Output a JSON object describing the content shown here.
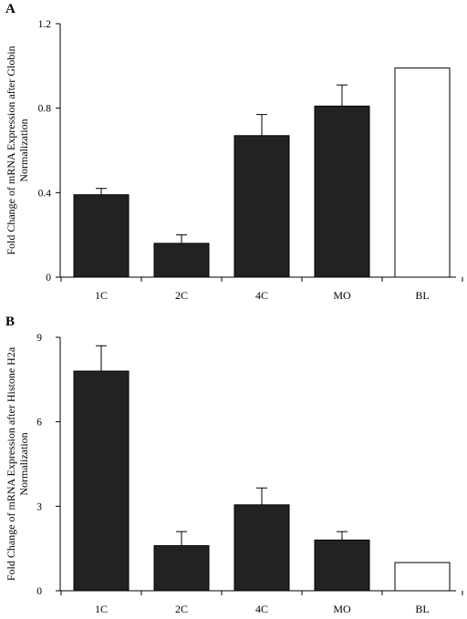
{
  "chart_data": [
    {
      "panel_label": "A",
      "type": "bar",
      "categories": [
        "1C",
        "2C",
        "4C",
        "MO",
        "BL"
      ],
      "values": [
        0.39,
        0.16,
        0.67,
        0.81,
        0.99
      ],
      "errors": [
        0.03,
        0.04,
        0.1,
        0.1,
        0
      ],
      "fills": [
        "#222222",
        "#222222",
        "#222222",
        "#222222",
        "#ffffff"
      ],
      "ylim": [
        0,
        1.2
      ],
      "yticks": [
        0,
        0.4,
        0.8,
        1.2
      ],
      "ytick_labels": [
        "0",
        "0.4",
        "0.8",
        "1.2"
      ],
      "ylabel_line1": "Fold Change of mRNA Expression after Globin",
      "ylabel_line2": "Normalization",
      "xlabel": "",
      "title": "",
      "grid": false
    },
    {
      "panel_label": "B",
      "type": "bar",
      "categories": [
        "1C",
        "2C",
        "4C",
        "MO",
        "BL"
      ],
      "values": [
        7.8,
        1.6,
        3.05,
        1.8,
        1.0
      ],
      "errors": [
        0.9,
        0.5,
        0.6,
        0.3,
        0
      ],
      "fills": [
        "#222222",
        "#222222",
        "#222222",
        "#222222",
        "#ffffff"
      ],
      "ylim": [
        0,
        9
      ],
      "yticks": [
        0,
        3,
        6,
        9
      ],
      "ytick_labels": [
        "0",
        "3",
        "6",
        "9"
      ],
      "ylabel_line1": "Fold Change of mRNA Expression after Histone H2a",
      "ylabel_line2": "Normalization",
      "xlabel": "",
      "title": "",
      "grid": false
    }
  ]
}
